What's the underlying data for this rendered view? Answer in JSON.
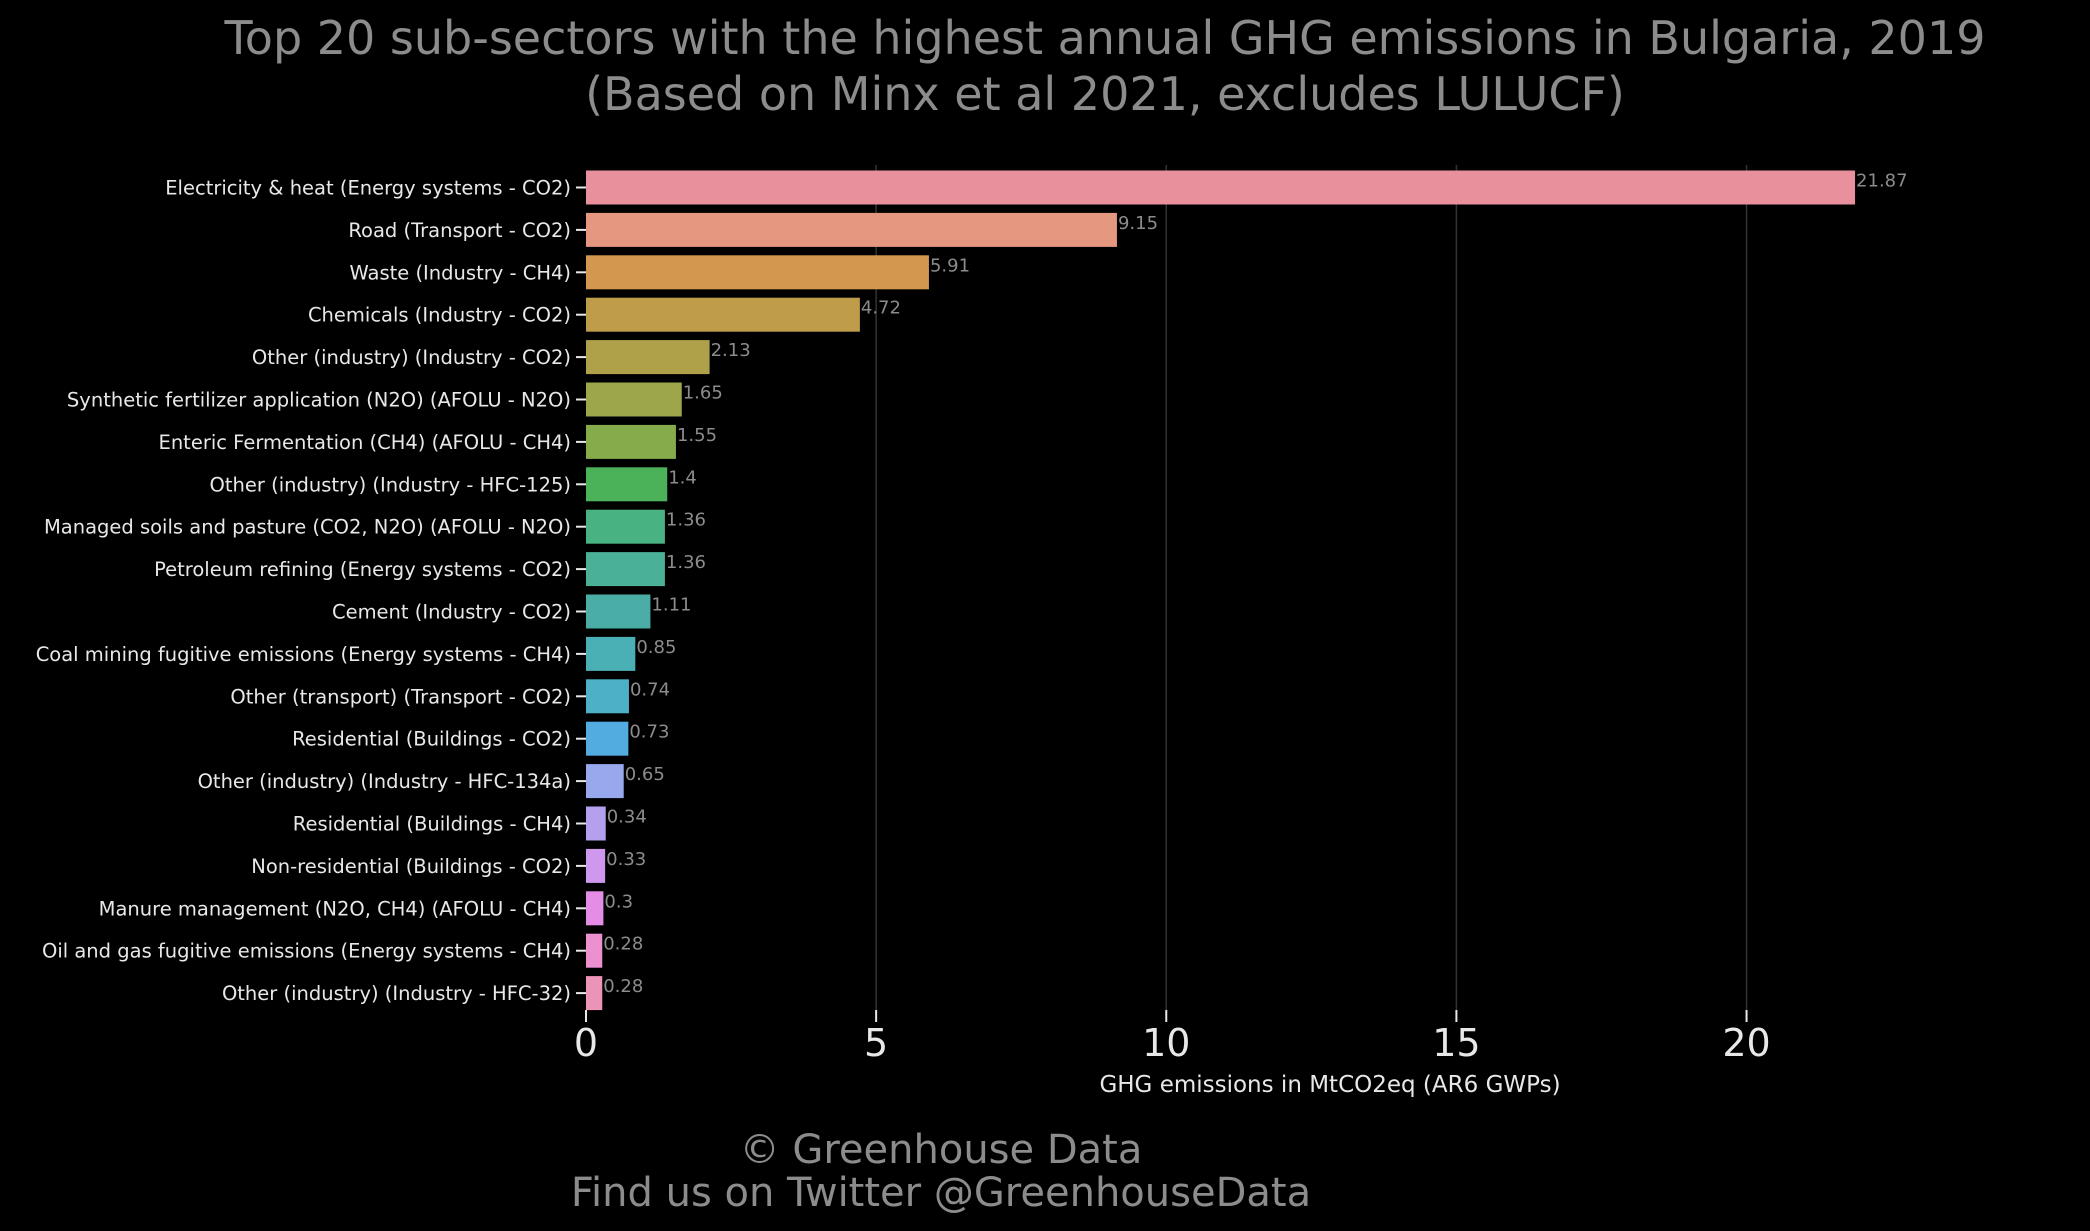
{
  "chart_data": {
    "type": "bar",
    "orientation": "horizontal",
    "title": "Top 20 sub-sectors with the highest annual GHG emissions in Bulgaria, 2019",
    "subtitle": "(Based on Minx et al 2021, excludes LULUCF)",
    "xlabel": "GHG emissions in MtCO2eq (AR6 GWPs)",
    "ylabel": "",
    "xlim": [
      0,
      22.3
    ],
    "xticks": [
      0,
      5,
      10,
      15,
      20
    ],
    "grid": "vertical",
    "legend": "none",
    "categories": [
      "Electricity & heat (Energy systems - CO2)",
      "Road (Transport - CO2)",
      "Waste (Industry - CH4)",
      "Chemicals (Industry - CO2)",
      "Other (industry) (Industry - CO2)",
      "Synthetic fertilizer application (N2O) (AFOLU - N2O)",
      "Enteric Fermentation (CH4) (AFOLU - CH4)",
      "Other (industry) (Industry - HFC-125)",
      "Managed soils and pasture (CO2, N2O) (AFOLU - N2O)",
      "Petroleum refining (Energy systems - CO2)",
      "Cement (Industry - CO2)",
      "Coal mining fugitive emissions (Energy systems - CH4)",
      "Other (transport) (Transport - CO2)",
      "Residential (Buildings - CO2)",
      "Other (industry) (Industry - HFC-134a)",
      "Residential (Buildings - CH4)",
      "Non-residential (Buildings - CO2)",
      "Manure management (N2O, CH4) (AFOLU - CH4)",
      "Oil and gas fugitive emissions (Energy systems - CH4)",
      "Other (industry) (Industry - HFC-32)"
    ],
    "values": [
      21.87,
      9.15,
      5.91,
      4.72,
      2.13,
      1.65,
      1.55,
      1.4,
      1.36,
      1.36,
      1.11,
      0.85,
      0.74,
      0.73,
      0.65,
      0.34,
      0.33,
      0.3,
      0.28,
      0.28
    ],
    "value_labels": [
      "21.87",
      "9.15",
      "5.91",
      "4.72",
      "2.13",
      "1.65",
      "1.55",
      "1.4",
      "1.36",
      "1.36",
      "1.11",
      "0.85",
      "0.74",
      "0.73",
      "0.65",
      "0.34",
      "0.33",
      "0.3",
      "0.28",
      "0.28"
    ],
    "colors": [
      "#e8909b",
      "#e5977f",
      "#d39750",
      "#bf9c4a",
      "#afa14a",
      "#9da64a",
      "#86ab4a",
      "#4bb25a",
      "#49b282",
      "#4ab096",
      "#4aaea6",
      "#4bafb6",
      "#4eb0c6",
      "#53ace0",
      "#98a8ec",
      "#b5a0ee",
      "#cd98ee",
      "#e58ce6",
      "#ec90cf",
      "#ec93b8"
    ]
  },
  "footer": {
    "copyright": "© Greenhouse Data",
    "twitter": "Find us on Twitter @GreenhouseData"
  },
  "theme": {
    "background": "#000000",
    "title_color": "#8c8c8c",
    "label_color": "#e8e8e8",
    "value_label_color": "#8c8c8c",
    "grid_color": "#333333"
  }
}
